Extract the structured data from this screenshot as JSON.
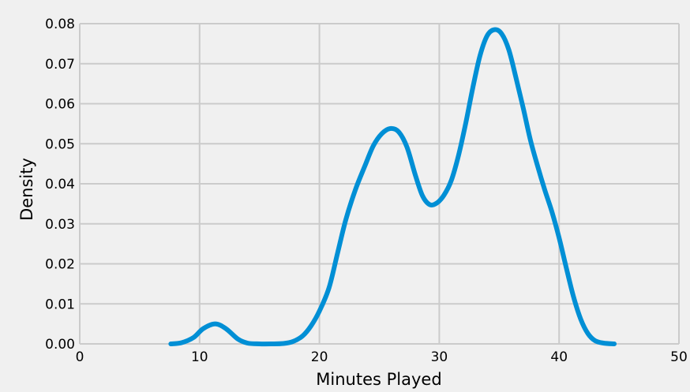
{
  "chart_data": {
    "type": "line",
    "title": "",
    "xlabel": "Minutes Played",
    "ylabel": "Density",
    "xlim": [
      0,
      50
    ],
    "ylim": [
      0,
      0.08
    ],
    "x_ticks": [
      0,
      10,
      20,
      30,
      40,
      50
    ],
    "x_tick_labels": [
      "0",
      "10",
      "20",
      "30",
      "40",
      "50"
    ],
    "y_ticks": [
      0,
      0.01,
      0.02,
      0.03,
      0.04,
      0.05,
      0.06,
      0.07,
      0.08
    ],
    "y_tick_labels": [
      "0.00",
      "0.01",
      "0.02",
      "0.03",
      "0.04",
      "0.05",
      "0.06",
      "0.07",
      "0.08"
    ],
    "grid": true,
    "legend": "none",
    "series": [
      {
        "color": "#008fd5",
        "points": [
          [
            7.6,
            0.0
          ],
          [
            8.5,
            0.0003
          ],
          [
            9.5,
            0.0016
          ],
          [
            10.3,
            0.0038
          ],
          [
            11.3,
            0.005
          ],
          [
            12.2,
            0.0038
          ],
          [
            13.2,
            0.0012
          ],
          [
            14.0,
            0.0002
          ],
          [
            15.0,
            0.0
          ],
          [
            16.0,
            0.0
          ],
          [
            17.0,
            0.0001
          ],
          [
            17.8,
            0.0006
          ],
          [
            18.6,
            0.002
          ],
          [
            19.3,
            0.0045
          ],
          [
            20.0,
            0.0082
          ],
          [
            20.8,
            0.014
          ],
          [
            21.5,
            0.0225
          ],
          [
            22.2,
            0.031
          ],
          [
            23.0,
            0.0385
          ],
          [
            23.8,
            0.0445
          ],
          [
            24.5,
            0.0495
          ],
          [
            25.2,
            0.0525
          ],
          [
            25.9,
            0.0538
          ],
          [
            26.6,
            0.053
          ],
          [
            27.3,
            0.0492
          ],
          [
            28.0,
            0.0422
          ],
          [
            28.6,
            0.037
          ],
          [
            29.2,
            0.0348
          ],
          [
            29.8,
            0.0352
          ],
          [
            30.4,
            0.0372
          ],
          [
            31.0,
            0.0408
          ],
          [
            31.6,
            0.047
          ],
          [
            32.2,
            0.055
          ],
          [
            32.8,
            0.064
          ],
          [
            33.4,
            0.072
          ],
          [
            34.0,
            0.077
          ],
          [
            34.6,
            0.0785
          ],
          [
            35.2,
            0.0775
          ],
          [
            35.8,
            0.0735
          ],
          [
            36.4,
            0.0665
          ],
          [
            37.0,
            0.059
          ],
          [
            37.6,
            0.051
          ],
          [
            38.2,
            0.0445
          ],
          [
            38.8,
            0.0385
          ],
          [
            39.4,
            0.033
          ],
          [
            40.0,
            0.0265
          ],
          [
            40.6,
            0.019
          ],
          [
            41.2,
            0.0118
          ],
          [
            41.8,
            0.0062
          ],
          [
            42.4,
            0.0026
          ],
          [
            43.0,
            0.0008
          ],
          [
            43.7,
            0.0002
          ],
          [
            44.6,
            0.0
          ]
        ]
      }
    ]
  }
}
